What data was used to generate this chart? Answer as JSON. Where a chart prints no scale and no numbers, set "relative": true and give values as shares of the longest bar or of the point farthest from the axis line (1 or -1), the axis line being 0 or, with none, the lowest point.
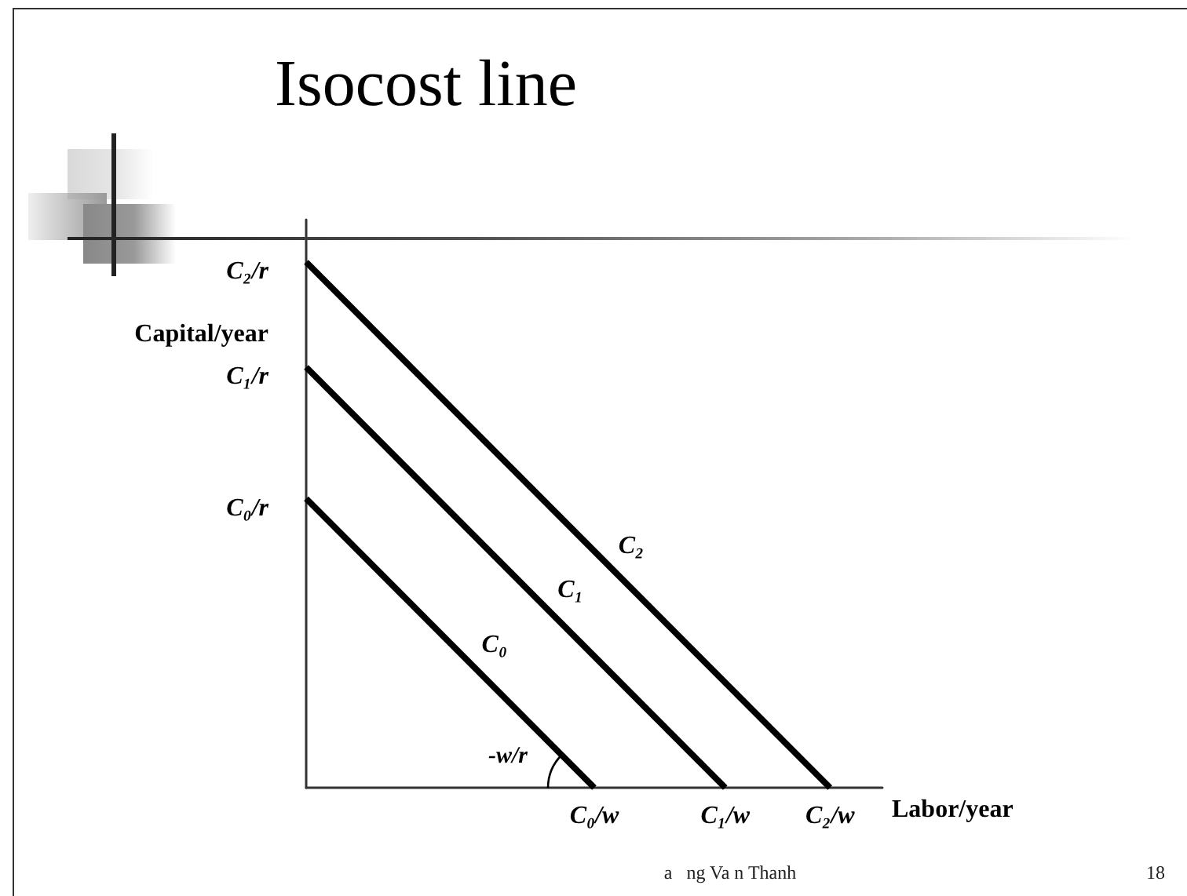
{
  "chart_data": {
    "type": "line",
    "title": "Isocost line",
    "xlabel": "Labor/year",
    "ylabel": "Capital/year",
    "relative": true,
    "categories": [
      null,
      null,
      null,
      null,
      null,
      null,
      null,
      null,
      null,
      null,
      null,
      "C₀/w",
      null,
      null,
      null,
      null,
      "C₁/w",
      null,
      null,
      null,
      "C₂/w",
      null,
      null
    ],
    "series": [
      {
        "name": "C₀",
        "color": "#000000",
        "values": [
          0.55,
          null,
          null,
          null,
          null,
          null,
          null,
          null,
          null,
          null,
          null,
          0,
          null,
          null,
          null,
          null,
          null,
          null,
          null,
          null,
          null,
          null,
          null
        ]
      },
      {
        "name": "C₁",
        "color": "#000000",
        "values": [
          0.8,
          null,
          null,
          null,
          null,
          null,
          null,
          null,
          null,
          null,
          null,
          null,
          null,
          null,
          null,
          null,
          0,
          null,
          null,
          null,
          null,
          null,
          null
        ]
      },
      {
        "name": "C₂",
        "color": "#000000",
        "values": [
          1,
          null,
          null,
          null,
          null,
          null,
          null,
          null,
          null,
          null,
          null,
          null,
          null,
          null,
          null,
          null,
          null,
          null,
          null,
          null,
          0,
          null,
          null
        ]
      }
    ],
    "marker": "none",
    "line_style": "solid",
    "grid": false,
    "legend": false,
    "annotations": [
      "C₀/r",
      "C₁/r",
      "C₂/r",
      "-w/r",
      "a   ng Va n Thanh",
      "18"
    ]
  }
}
